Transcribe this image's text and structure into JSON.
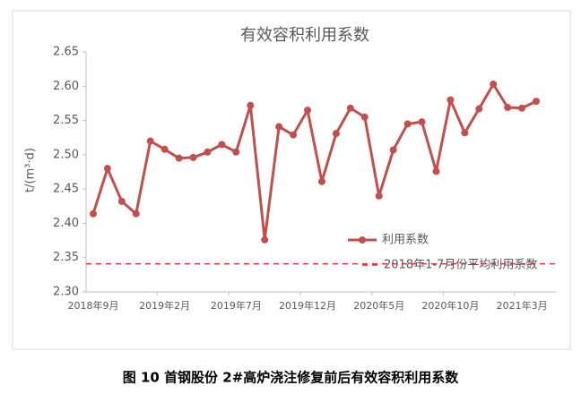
{
  "chart_data": {
    "type": "line",
    "title": "有效容积利用系数",
    "y_label": "t/(m³·d)",
    "caption": "图 10  首钢股份 2#高炉浇注修复前后有效容积利用系数",
    "categories": [
      "2018年9月",
      null,
      null,
      null,
      null,
      "2019年2月",
      null,
      null,
      null,
      null,
      "2019年7月",
      null,
      null,
      null,
      null,
      "2019年12月",
      null,
      null,
      null,
      null,
      "2020年5月",
      null,
      null,
      null,
      null,
      "2020年10月",
      null,
      null,
      null,
      null,
      "2021年3月",
      null
    ],
    "series": [
      {
        "name": "利用系数",
        "color": "#c0504d",
        "values": [
          2.414,
          2.48,
          2.432,
          2.414,
          2.52,
          2.508,
          2.495,
          2.496,
          2.504,
          2.515,
          2.504,
          2.572,
          2.376,
          2.541,
          2.529,
          2.565,
          2.461,
          2.531,
          2.568,
          2.555,
          2.44,
          2.507,
          2.545,
          2.548,
          2.476,
          2.58,
          2.532,
          2.567,
          2.603,
          2.569,
          2.568,
          2.578
        ]
      }
    ],
    "reference_line": {
      "name": "2018年1-7月份平均利用系数",
      "value": 2.341,
      "color": "#e03030"
    },
    "ylim": [
      2.3,
      2.65
    ],
    "yticks": [
      {
        "value": 2.3,
        "label": "2.30"
      },
      2.35,
      {
        "value": 2.4,
        "label": "2.40"
      },
      2.45,
      {
        "value": 2.5,
        "label": "2.50"
      },
      2.55,
      {
        "value": 2.6,
        "label": "2.60"
      },
      2.65
    ]
  }
}
